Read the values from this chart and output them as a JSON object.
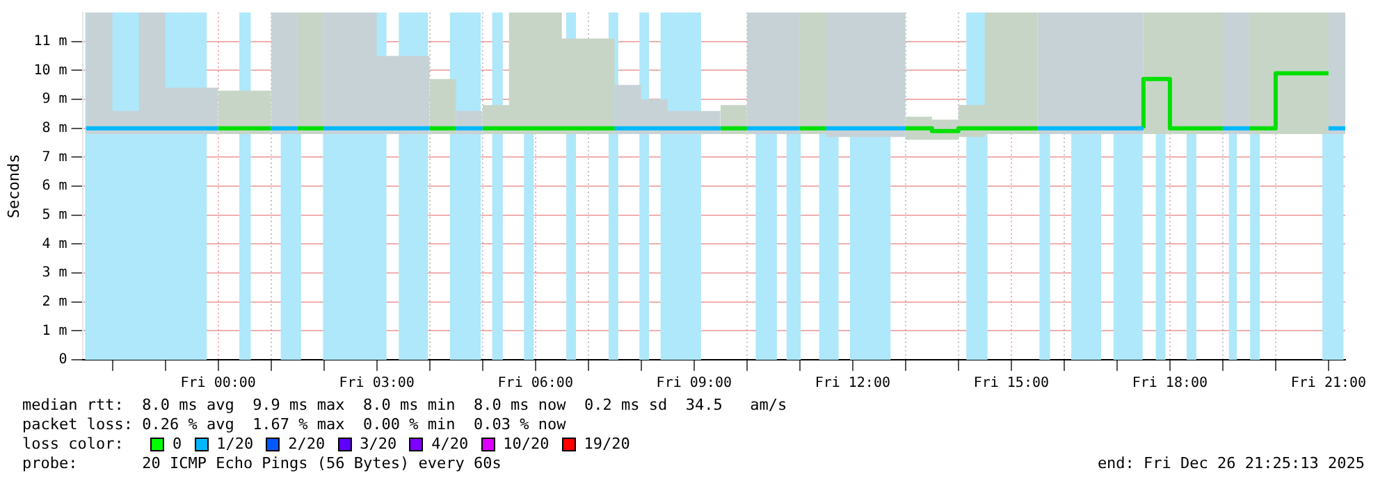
{
  "chart_data": {
    "type": "step",
    "ylabel": "Seconds",
    "xlim": [
      "2025-12-25T21:26",
      "2025-12-26T21:19"
    ],
    "ylim": [
      0,
      12
    ],
    "xticks": [
      {
        "value": "2025-12-25T22:00",
        "label": null
      },
      {
        "value": "2025-12-25T23:00",
        "label": null
      },
      {
        "value": "2025-12-26T00:00",
        "label": "Fri 00:00"
      },
      {
        "value": "2025-12-26T01:00",
        "label": null
      },
      {
        "value": "2025-12-26T02:00",
        "label": null
      },
      {
        "value": "2025-12-26T03:00",
        "label": "Fri 03:00"
      },
      {
        "value": "2025-12-26T04:00",
        "label": null
      },
      {
        "value": "2025-12-26T05:00",
        "label": null
      },
      {
        "value": "2025-12-26T06:00",
        "label": "Fri 06:00"
      },
      {
        "value": "2025-12-26T07:00",
        "label": null
      },
      {
        "value": "2025-12-26T08:00",
        "label": null
      },
      {
        "value": "2025-12-26T09:00",
        "label": "Fri 09:00"
      },
      {
        "value": "2025-12-26T10:00",
        "label": null
      },
      {
        "value": "2025-12-26T11:00",
        "label": null
      },
      {
        "value": "2025-12-26T12:00",
        "label": "Fri 12:00"
      },
      {
        "value": "2025-12-26T13:00",
        "label": null
      },
      {
        "value": "2025-12-26T14:00",
        "label": null
      },
      {
        "value": "2025-12-26T15:00",
        "label": "Fri 15:00"
      },
      {
        "value": "2025-12-26T16:00",
        "label": null
      },
      {
        "value": "2025-12-26T17:00",
        "label": null
      },
      {
        "value": "2025-12-26T18:00",
        "label": "Fri 18:00"
      },
      {
        "value": "2025-12-26T19:00",
        "label": null
      },
      {
        "value": "2025-12-26T20:00",
        "label": null
      },
      {
        "value": "2025-12-26T21:00",
        "label": "Fri 21:00"
      }
    ],
    "yticks": [
      0,
      {
        "value": 1,
        "label": "1 m"
      },
      {
        "value": 2,
        "label": "2 m"
      },
      {
        "value": 3,
        "label": "3 m"
      },
      {
        "value": 4,
        "label": "4 m"
      },
      {
        "value": 5,
        "label": "5 m"
      },
      {
        "value": 6,
        "label": "6 m"
      },
      {
        "value": 7,
        "label": "7 m"
      },
      {
        "value": 8,
        "label": "8 m"
      },
      {
        "value": 9,
        "label": "9 m"
      },
      {
        "value": 10,
        "label": "10 m"
      },
      {
        "value": 11,
        "label": "11 m"
      }
    ],
    "grid": true,
    "legend": false,
    "series": [
      {
        "color": "#00b8ff",
        "x": [
          "2025-12-25T21:30",
          "2025-12-25T22:00",
          "2025-12-25T22:30",
          "2025-12-25T23:00",
          "2025-12-25T23:30",
          "2025-12-26T00:00",
          "2025-12-26T00:15",
          "2025-12-26T01:00",
          "2025-12-26T01:30",
          "2025-12-26T01:45",
          "2025-12-26T02:00",
          "2025-12-26T02:30",
          "2025-12-26T03:00",
          "2025-12-26T03:30",
          "2025-12-26T04:00",
          "2025-12-26T04:15",
          "2025-12-26T04:30",
          "2025-12-26T05:00",
          "2025-12-26T05:15",
          "2025-12-26T07:30",
          "2025-12-26T08:00",
          "2025-12-26T08:30",
          "2025-12-26T09:00",
          "2025-12-26T09:30",
          "2025-12-26T09:45",
          "2025-12-26T10:00",
          "2025-12-26T10:30",
          "2025-12-26T11:00",
          "2025-12-26T11:15",
          "2025-12-26T11:30",
          "2025-12-26T12:00",
          "2025-12-26T12:30",
          "2025-12-26T13:00",
          "2025-12-26T13:15",
          "2025-12-26T15:30",
          "2025-12-26T16:00",
          "2025-12-26T16:30",
          "2025-12-26T17:00",
          "2025-12-26T17:30",
          "2025-12-26T17:45",
          "2025-12-26T19:00",
          "2025-12-26T19:30",
          "2025-12-26T19:45",
          "2025-12-26T21:00",
          "2025-12-26T21:19"
        ],
        "values": [
          8,
          8,
          8,
          8,
          8,
          8,
          null,
          8,
          8,
          null,
          8,
          8,
          8,
          8,
          8,
          null,
          8,
          8,
          null,
          8,
          8,
          8,
          8,
          8,
          null,
          8,
          8,
          8,
          null,
          8,
          8,
          8,
          8,
          null,
          8,
          8,
          8,
          8,
          8,
          null,
          8,
          8,
          null,
          8,
          8
        ],
        "lower": [
          7.8,
          7.8,
          7.8,
          7.8,
          7.8,
          7.8,
          null,
          7.8,
          7.8,
          null,
          7.8,
          7.8,
          7.8,
          7.8,
          7.8,
          null,
          7.8,
          7.8,
          null,
          7.8,
          7.8,
          7.8,
          7.8,
          7.8,
          null,
          7.8,
          7.8,
          7.8,
          null,
          7.8,
          7.7,
          7.7,
          7.7,
          null,
          7.8,
          7.8,
          7.8,
          7.8,
          7.8,
          null,
          7.8,
          7.8,
          null,
          7.8,
          7.8
        ],
        "upper": [
          10,
          12,
          8.6,
          12,
          9.4,
          9.4,
          null,
          12,
          12,
          null,
          8.6,
          12,
          12,
          10.5,
          10.5,
          null,
          8.6,
          8.6,
          null,
          12,
          9.5,
          9,
          8.6,
          8.6,
          null,
          8.8,
          12,
          12,
          null,
          12,
          12,
          12,
          12,
          null,
          12,
          12,
          12,
          12,
          12,
          null,
          12,
          12,
          null,
          12,
          12
        ]
      },
      {
        "color": "#00e000",
        "x": [
          "2025-12-26T00:00",
          "2025-12-26T00:30",
          "2025-12-26T01:00",
          "2025-12-26T01:15",
          "2025-12-26T01:30",
          "2025-12-26T02:00",
          "2025-12-26T02:15",
          "2025-12-26T04:00",
          "2025-12-26T04:30",
          "2025-12-26T04:45",
          "2025-12-26T05:00",
          "2025-12-26T05:30",
          "2025-12-26T06:00",
          "2025-12-26T06:30",
          "2025-12-26T07:00",
          "2025-12-26T07:30",
          "2025-12-26T07:45",
          "2025-12-26T09:30",
          "2025-12-26T10:00",
          "2025-12-26T10:15",
          "2025-12-26T11:00",
          "2025-12-26T11:30",
          "2025-12-26T11:45",
          "2025-12-26T13:00",
          "2025-12-26T13:30",
          "2025-12-26T14:00",
          "2025-12-26T14:30",
          "2025-12-26T15:00",
          "2025-12-26T15:30",
          "2025-12-26T15:45",
          "2025-12-26T17:30",
          "2025-12-26T18:00",
          "2025-12-26T18:30",
          "2025-12-26T19:00",
          "2025-12-26T19:15",
          "2025-12-26T19:30",
          "2025-12-26T20:00",
          "2025-12-26T20:30",
          "2025-12-26T21:00"
        ],
        "values": [
          8,
          8,
          8,
          null,
          8,
          8,
          null,
          8,
          8,
          null,
          8,
          8,
          8,
          8,
          8,
          8,
          null,
          8,
          8,
          null,
          8,
          8,
          null,
          8,
          8,
          7.9,
          8,
          8,
          8,
          null,
          8,
          9.7,
          8,
          8,
          null,
          8,
          8,
          9.9,
          9.9
        ],
        "lower": [
          7.8,
          7.8,
          7.8,
          null,
          7.8,
          7.8,
          null,
          7.8,
          7.8,
          null,
          7.8,
          7.8,
          7.8,
          7.8,
          7.8,
          7.8,
          null,
          7.8,
          7.8,
          null,
          7.8,
          7.8,
          null,
          7.7,
          7.6,
          7.6,
          7.7,
          7.8,
          7.8,
          null,
          7.8,
          7.8,
          7.8,
          7.8,
          null,
          7.8,
          7.8,
          7.8,
          7.8
        ],
        "upper": [
          8.9,
          9.3,
          9.3,
          null,
          12,
          12,
          null,
          9.7,
          9.7,
          null,
          8.6,
          8.8,
          12,
          12,
          11.1,
          11.1,
          null,
          8.8,
          8.8,
          null,
          12,
          12,
          null,
          8.6,
          8.4,
          8.3,
          8.8,
          12,
          12,
          null,
          12,
          12,
          12,
          12,
          null,
          11.5,
          12,
          12,
          12
        ]
      }
    ],
    "bands": [
      {
        "axis": "x",
        "from": "2025-12-25T21:29",
        "to": "2025-12-25T23:47",
        "color": "#aee8fa"
      },
      {
        "axis": "x",
        "from": "2025-12-26T00:24",
        "to": "2025-12-26T00:37",
        "color": "#aee8fa"
      },
      {
        "axis": "x",
        "from": "2025-12-26T01:11",
        "to": "2025-12-26T01:34",
        "color": "#aee8fa"
      },
      {
        "axis": "x",
        "from": "2025-12-26T01:59",
        "to": "2025-12-26T03:11",
        "color": "#aee8fa"
      },
      {
        "axis": "x",
        "from": "2025-12-26T03:25",
        "to": "2025-12-26T03:58",
        "color": "#aee8fa"
      },
      {
        "axis": "x",
        "from": "2025-12-26T04:23",
        "to": "2025-12-26T04:58",
        "color": "#aee8fa"
      },
      {
        "axis": "x",
        "from": "2025-12-26T05:11",
        "to": "2025-12-26T05:23",
        "color": "#aee8fa"
      },
      {
        "axis": "x",
        "from": "2025-12-26T05:47",
        "to": "2025-12-26T05:58",
        "color": "#aee8fa"
      },
      {
        "axis": "x",
        "from": "2025-12-26T06:35",
        "to": "2025-12-26T06:46",
        "color": "#aee8fa"
      },
      {
        "axis": "x",
        "from": "2025-12-26T07:23",
        "to": "2025-12-26T07:34",
        "color": "#aee8fa"
      },
      {
        "axis": "x",
        "from": "2025-12-26T07:58",
        "to": "2025-12-26T08:09",
        "color": "#aee8fa"
      },
      {
        "axis": "x",
        "from": "2025-12-26T08:22",
        "to": "2025-12-26T09:08",
        "color": "#aee8fa"
      },
      {
        "axis": "x",
        "from": "2025-12-26T10:10",
        "to": "2025-12-26T10:34",
        "color": "#aee8fa"
      },
      {
        "axis": "x",
        "from": "2025-12-26T10:45",
        "to": "2025-12-26T11:01",
        "color": "#aee8fa"
      },
      {
        "axis": "x",
        "from": "2025-12-26T11:22",
        "to": "2025-12-26T11:44",
        "color": "#aee8fa"
      },
      {
        "axis": "x",
        "from": "2025-12-26T11:57",
        "to": "2025-12-26T12:43",
        "color": "#aee8fa"
      },
      {
        "axis": "x",
        "from": "2025-12-26T14:09",
        "to": "2025-12-26T14:33",
        "color": "#aee8fa"
      },
      {
        "axis": "x",
        "from": "2025-12-26T15:32",
        "to": "2025-12-26T15:44",
        "color": "#aee8fa"
      },
      {
        "axis": "x",
        "from": "2025-12-26T16:08",
        "to": "2025-12-26T16:42",
        "color": "#aee8fa"
      },
      {
        "axis": "x",
        "from": "2025-12-26T16:56",
        "to": "2025-12-26T17:29",
        "color": "#aee8fa"
      },
      {
        "axis": "x",
        "from": "2025-12-26T17:44",
        "to": "2025-12-26T17:55",
        "color": "#aee8fa"
      },
      {
        "axis": "x",
        "from": "2025-12-26T18:19",
        "to": "2025-12-26T18:30",
        "color": "#aee8fa"
      },
      {
        "axis": "x",
        "from": "2025-12-26T19:07",
        "to": "2025-12-26T19:16",
        "color": "#aee8fa"
      },
      {
        "axis": "x",
        "from": "2025-12-26T19:31",
        "to": "2025-12-26T19:42",
        "color": "#aee8fa"
      },
      {
        "axis": "x",
        "from": "2025-12-26T20:53",
        "to": "2025-12-26T21:17",
        "color": "#aee8fa"
      }
    ],
    "annotations": [
      "median rtt:  8.0 ms avg  9.9 ms max  8.0 ms min  8.0 ms now  0.2 ms sd  34.5   am/s",
      "packet loss: 0.26 % avg  1.67 % max  0.00 % min  0.03 % now",
      "loss color:",
      "0",
      "1/20",
      "2/20",
      "3/20",
      "4/20",
      "10/20",
      "19/20",
      "probe:       20 ICMP Echo Pings (56 Bytes) every 60s",
      "end: Fri Dec 26 21:25:13 2025"
    ]
  }
}
